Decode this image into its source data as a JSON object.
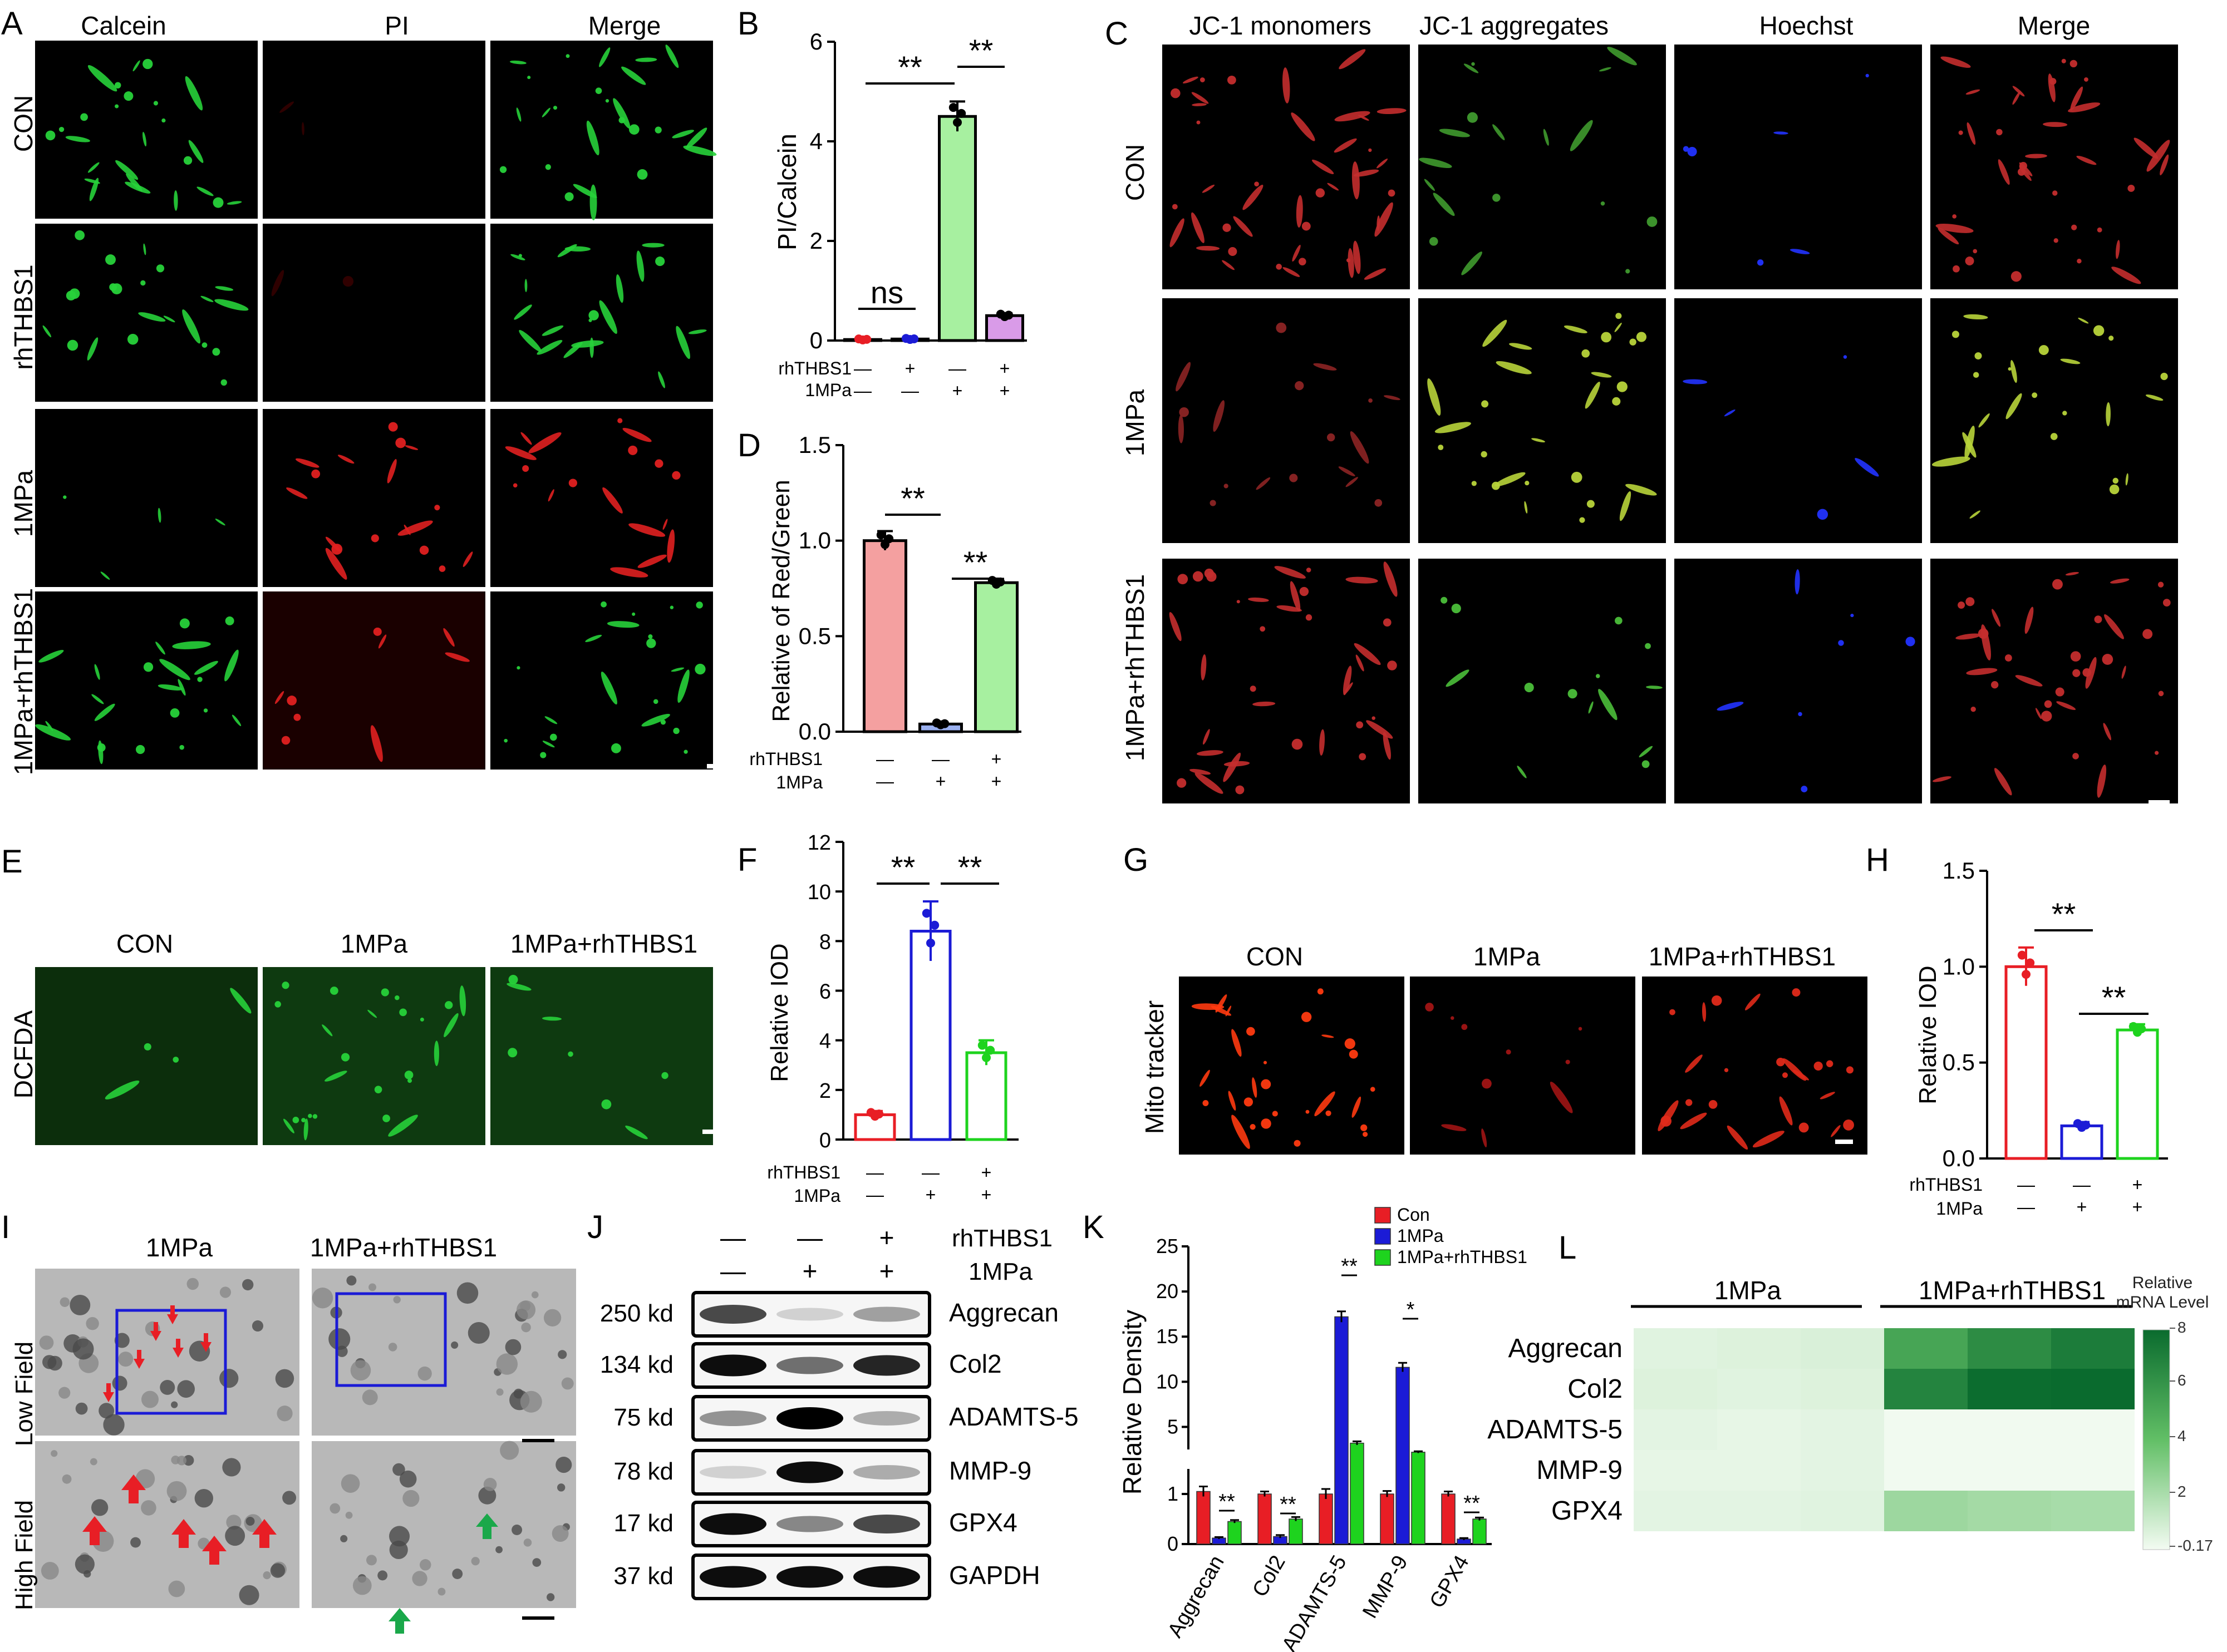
{
  "colors": {
    "calcein_green": "#27d23a",
    "pi_red": "#e02020",
    "con_pink": "#f4a0a0",
    "bar_green": "#a7f0a0",
    "bar_violet": "#d99be8",
    "red": "#e81e25",
    "blue": "#1b1bd6",
    "green": "#1ed31e",
    "heat_dark": "#0a6b2e",
    "heat_light": "#f3fbf2"
  },
  "panels": {
    "A": {
      "letter": "A",
      "columns": [
        "Calcein",
        "PI",
        "Merge"
      ],
      "rows": [
        "CON",
        "rhTHBS1",
        "1MPa",
        "1MPa+rhTHBS1"
      ]
    },
    "B": {
      "letter": "B",
      "ylabel": "PI/Calcein",
      "yticks": [
        "0",
        "2",
        "4",
        "6"
      ],
      "sig": [
        "ns",
        "**",
        "**"
      ],
      "rhthbs1_label": "rhTHBS1",
      "mpa_label": "1MPa",
      "rhthbs1": [
        "—",
        "+",
        "—",
        "+"
      ],
      "mpa": [
        "—",
        "—",
        "+",
        "+"
      ]
    },
    "C": {
      "letter": "C",
      "columns": [
        "JC-1 monomers",
        "JC-1 aggregates",
        "Hoechst",
        "Merge"
      ],
      "rows": [
        "CON",
        "1MPa",
        "1MPa+rhTHBS1"
      ]
    },
    "D": {
      "letter": "D",
      "ylabel": "Relative of Red/Green",
      "yticks": [
        "0.0",
        "0.5",
        "1.0",
        "1.5"
      ],
      "sig": [
        "**",
        "**"
      ],
      "rhthbs1_label": "rhTHBS1",
      "mpa_label": "1MPa",
      "rhthbs1": [
        "—",
        "—",
        "+"
      ],
      "mpa": [
        "—",
        "+",
        "+"
      ]
    },
    "E": {
      "letter": "E",
      "columns": [
        "CON",
        "1MPa",
        "1MPa+rhTHBS1"
      ],
      "row": "DCFDA"
    },
    "F": {
      "letter": "F",
      "ylabel": "Relative IOD",
      "yticks": [
        "0",
        "2",
        "4",
        "6",
        "8",
        "10",
        "12"
      ],
      "sig": [
        "**",
        "**"
      ],
      "rhthbs1_label": "rhTHBS1",
      "mpa_label": "1MPa",
      "rhthbs1": [
        "—",
        "—",
        "+"
      ],
      "mpa": [
        "—",
        "+",
        "+"
      ]
    },
    "G": {
      "letter": "G",
      "columns": [
        "CON",
        "1MPa",
        "1MPa+rhTHBS1"
      ],
      "row": "Mito tracker"
    },
    "H": {
      "letter": "H",
      "ylabel": "Relative IOD",
      "yticks": [
        "0.0",
        "0.5",
        "1.0",
        "1.5"
      ],
      "sig": [
        "**",
        "**"
      ],
      "rhthbs1_label": "rhTHBS1",
      "mpa_label": "1MPa",
      "rhthbs1": [
        "—",
        "—",
        "+"
      ],
      "mpa": [
        "—",
        "+",
        "+"
      ]
    },
    "I": {
      "letter": "I",
      "columns": [
        "1MPa",
        "1MPa+rhTHBS1"
      ],
      "rows": [
        "Low Field",
        "High Field"
      ]
    },
    "J": {
      "letter": "J",
      "rhthbs1_label": "rhTHBS1",
      "mpa_label": "1MPa",
      "rhthbs1": [
        "—",
        "—",
        "+"
      ],
      "mpa": [
        "—",
        "+",
        "+"
      ],
      "sizes": [
        "250 kd",
        "134 kd",
        "75 kd",
        "78 kd",
        "17 kd",
        "37 kd"
      ],
      "proteins": [
        "Aggrecan",
        "Col2",
        "ADAMTS-5",
        "MMP-9",
        "GPX4",
        "GAPDH"
      ]
    },
    "K": {
      "letter": "K",
      "ylabel": "Relative Density",
      "yticks_low": [
        "0",
        "1"
      ],
      "yticks_high": [
        "5",
        "10",
        "15",
        "20",
        "25"
      ],
      "sig": [
        "**",
        "**",
        "**",
        "*",
        "**"
      ]
    },
    "L": {
      "letter": "L",
      "groups": [
        "1MPa",
        "1MPa+rhTHBS1"
      ],
      "rows": [
        "Aggrecan",
        "Col2",
        "ADAMTS-5",
        "MMP-9",
        "GPX4"
      ],
      "colorbar_title": [
        "Relative",
        "mRNA Level"
      ],
      "colorbar_ticks": [
        "8",
        "6",
        "4",
        "2",
        "-0.17"
      ]
    }
  },
  "chart_data": [
    {
      "type": "bar",
      "title": "",
      "ylabel": "PI/Calcein",
      "categories": [
        "rhTHBS1 — / 1MPa —",
        "rhTHBS1 + / 1MPa —",
        "rhTHBS1 — / 1MPa +",
        "rhTHBS1 + / 1MPa +"
      ],
      "values": [
        0.02,
        0.03,
        4.5,
        0.5
      ],
      "errors": [
        0.02,
        0.02,
        0.3,
        0.05
      ],
      "ylim": [
        0,
        6
      ]
    },
    {
      "type": "bar",
      "title": "",
      "ylabel": "Relative of Red/Green",
      "categories": [
        "rhTHBS1 — / 1MPa —",
        "rhTHBS1 — / 1MPa +",
        "rhTHBS1 + / 1MPa +"
      ],
      "values": [
        1.0,
        0.04,
        0.78
      ],
      "errors": [
        0.05,
        0.01,
        0.02
      ],
      "ylim": [
        0,
        1.5
      ]
    },
    {
      "type": "bar",
      "title": "",
      "ylabel": "Relative IOD",
      "categories": [
        "rhTHBS1 — / 1MPa —",
        "rhTHBS1 — / 1MPa +",
        "rhTHBS1 + / 1MPa +"
      ],
      "values": [
        1.0,
        8.4,
        3.5
      ],
      "errors": [
        0.15,
        1.2,
        0.5
      ],
      "ylim": [
        0,
        12
      ]
    },
    {
      "type": "bar",
      "title": "",
      "ylabel": "Relative IOD",
      "categories": [
        "rhTHBS1 — / 1MPa —",
        "rhTHBS1 — / 1MPa +",
        "rhTHBS1 + / 1MPa +"
      ],
      "values": [
        1.0,
        0.17,
        0.67
      ],
      "errors": [
        0.1,
        0.02,
        0.03
      ],
      "ylim": [
        0,
        1.5
      ]
    },
    {
      "type": "bar",
      "title": "",
      "ylabel": "Relative Density",
      "categories": [
        "Aggrecan",
        "Col2",
        "ADAMTS-5",
        "MMP-9",
        "GPX4"
      ],
      "series": [
        {
          "name": "Con",
          "values": [
            1.05,
            1.0,
            1.0,
            1.0,
            1.0
          ],
          "errors": [
            0.1,
            0.05,
            0.1,
            0.06,
            0.05
          ]
        },
        {
          "name": "1MPa",
          "values": [
            0.12,
            0.15,
            17.2,
            11.6,
            0.1
          ],
          "errors": [
            0.02,
            0.03,
            0.6,
            0.5,
            0.02
          ]
        },
        {
          "name": "1MPa+rhTHBS1",
          "values": [
            0.45,
            0.5,
            3.2,
            2.2,
            0.5
          ],
          "errors": [
            0.03,
            0.04,
            0.2,
            0.1,
            0.03
          ]
        }
      ],
      "ylim": [
        0,
        25
      ],
      "axis_break": [
        1.5,
        2.5
      ]
    },
    {
      "type": "heatmap",
      "title": "",
      "x": [
        "1MPa",
        "1MPa",
        "1MPa",
        "1MPa+rhTHBS1",
        "1MPa+rhTHBS1",
        "1MPa+rhTHBS1"
      ],
      "y": [
        "Aggrecan",
        "Col2",
        "ADAMTS-5",
        "MMP-9",
        "GPX4"
      ],
      "values": [
        [
          0.4,
          0.5,
          0.6,
          5.5,
          6.8,
          7.6
        ],
        [
          0.5,
          0.4,
          0.5,
          7.2,
          8.4,
          8.8
        ],
        [
          0.3,
          0.2,
          0.3,
          -0.1,
          -0.1,
          -0.1
        ],
        [
          0.2,
          0.2,
          0.3,
          -0.1,
          -0.1,
          -0.1
        ],
        [
          0.3,
          0.3,
          0.4,
          2.4,
          2.2,
          2.1
        ]
      ],
      "colorbar_range": [
        -0.17,
        8.5
      ]
    }
  ]
}
